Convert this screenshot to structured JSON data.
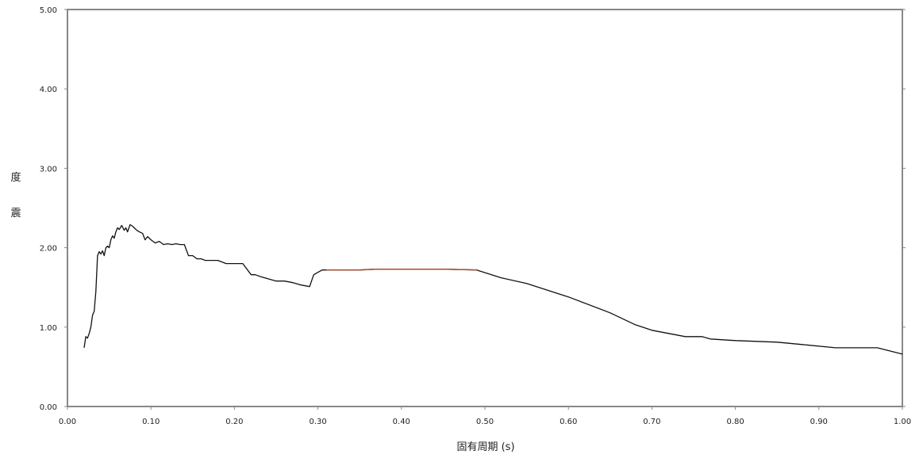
{
  "chart_data": {
    "type": "line",
    "title": "",
    "xlabel": "固有周期 (s)",
    "ylabel": "震 度",
    "ylabel_chars": [
      "震",
      "度"
    ],
    "xlim": [
      0,
      1.0
    ],
    "ylim": [
      0,
      5.0
    ],
    "grid": false,
    "x_ticks": [
      "0.00",
      "0.10",
      "0.20",
      "0.30",
      "0.40",
      "0.50",
      "0.60",
      "0.70",
      "0.80",
      "0.90",
      "1.00"
    ],
    "y_ticks": [
      "0.00",
      "1.00",
      "2.00",
      "3.00",
      "4.00",
      "5.00"
    ],
    "colors": {
      "line": "#111111",
      "plateau": "#b04a2a",
      "frame": "#888888"
    },
    "series": [
      {
        "x": [
          0.02,
          0.022,
          0.024,
          0.026,
          0.028,
          0.03,
          0.032,
          0.034,
          0.036,
          0.038,
          0.04,
          0.042,
          0.044,
          0.046,
          0.048,
          0.05,
          0.052,
          0.054,
          0.056,
          0.058,
          0.06,
          0.062,
          0.065,
          0.068,
          0.07,
          0.072,
          0.075,
          0.078,
          0.08,
          0.083,
          0.086,
          0.09,
          0.093,
          0.096,
          0.1,
          0.105,
          0.11,
          0.115,
          0.12,
          0.125,
          0.13,
          0.135,
          0.14,
          0.145,
          0.15,
          0.155,
          0.16,
          0.165,
          0.17,
          0.175,
          0.18,
          0.19,
          0.2,
          0.21,
          0.22,
          0.225,
          0.23,
          0.24,
          0.25,
          0.26,
          0.27,
          0.28,
          0.29,
          0.295,
          0.3,
          0.305,
          0.31,
          0.33,
          0.35,
          0.37,
          0.38,
          0.4,
          0.45,
          0.49,
          0.52,
          0.55,
          0.6,
          0.65,
          0.68,
          0.7,
          0.72,
          0.74,
          0.76,
          0.77,
          0.8,
          0.85,
          0.88,
          0.92,
          0.95,
          0.97,
          1.0
        ],
        "y": [
          0.74,
          0.88,
          0.86,
          0.92,
          1.0,
          1.15,
          1.2,
          1.45,
          1.9,
          1.95,
          1.92,
          1.96,
          1.9,
          2.0,
          2.02,
          2.0,
          2.1,
          2.15,
          2.12,
          2.2,
          2.25,
          2.23,
          2.28,
          2.22,
          2.25,
          2.2,
          2.29,
          2.27,
          2.25,
          2.22,
          2.2,
          2.18,
          2.1,
          2.14,
          2.1,
          2.06,
          2.08,
          2.04,
          2.05,
          2.04,
          2.05,
          2.04,
          2.04,
          1.9,
          1.9,
          1.86,
          1.86,
          1.84,
          1.84,
          1.84,
          1.84,
          1.8,
          1.8,
          1.8,
          1.66,
          1.66,
          1.64,
          1.61,
          1.58,
          1.58,
          1.56,
          1.53,
          1.51,
          1.66,
          1.69,
          1.72,
          1.72,
          1.72,
          1.72,
          1.73,
          1.73,
          1.73,
          1.73,
          1.72,
          1.62,
          1.55,
          1.38,
          1.18,
          1.03,
          0.96,
          0.92,
          0.88,
          0.88,
          0.85,
          0.83,
          0.81,
          0.78,
          0.74,
          0.74,
          0.74,
          0.66
        ]
      }
    ]
  }
}
